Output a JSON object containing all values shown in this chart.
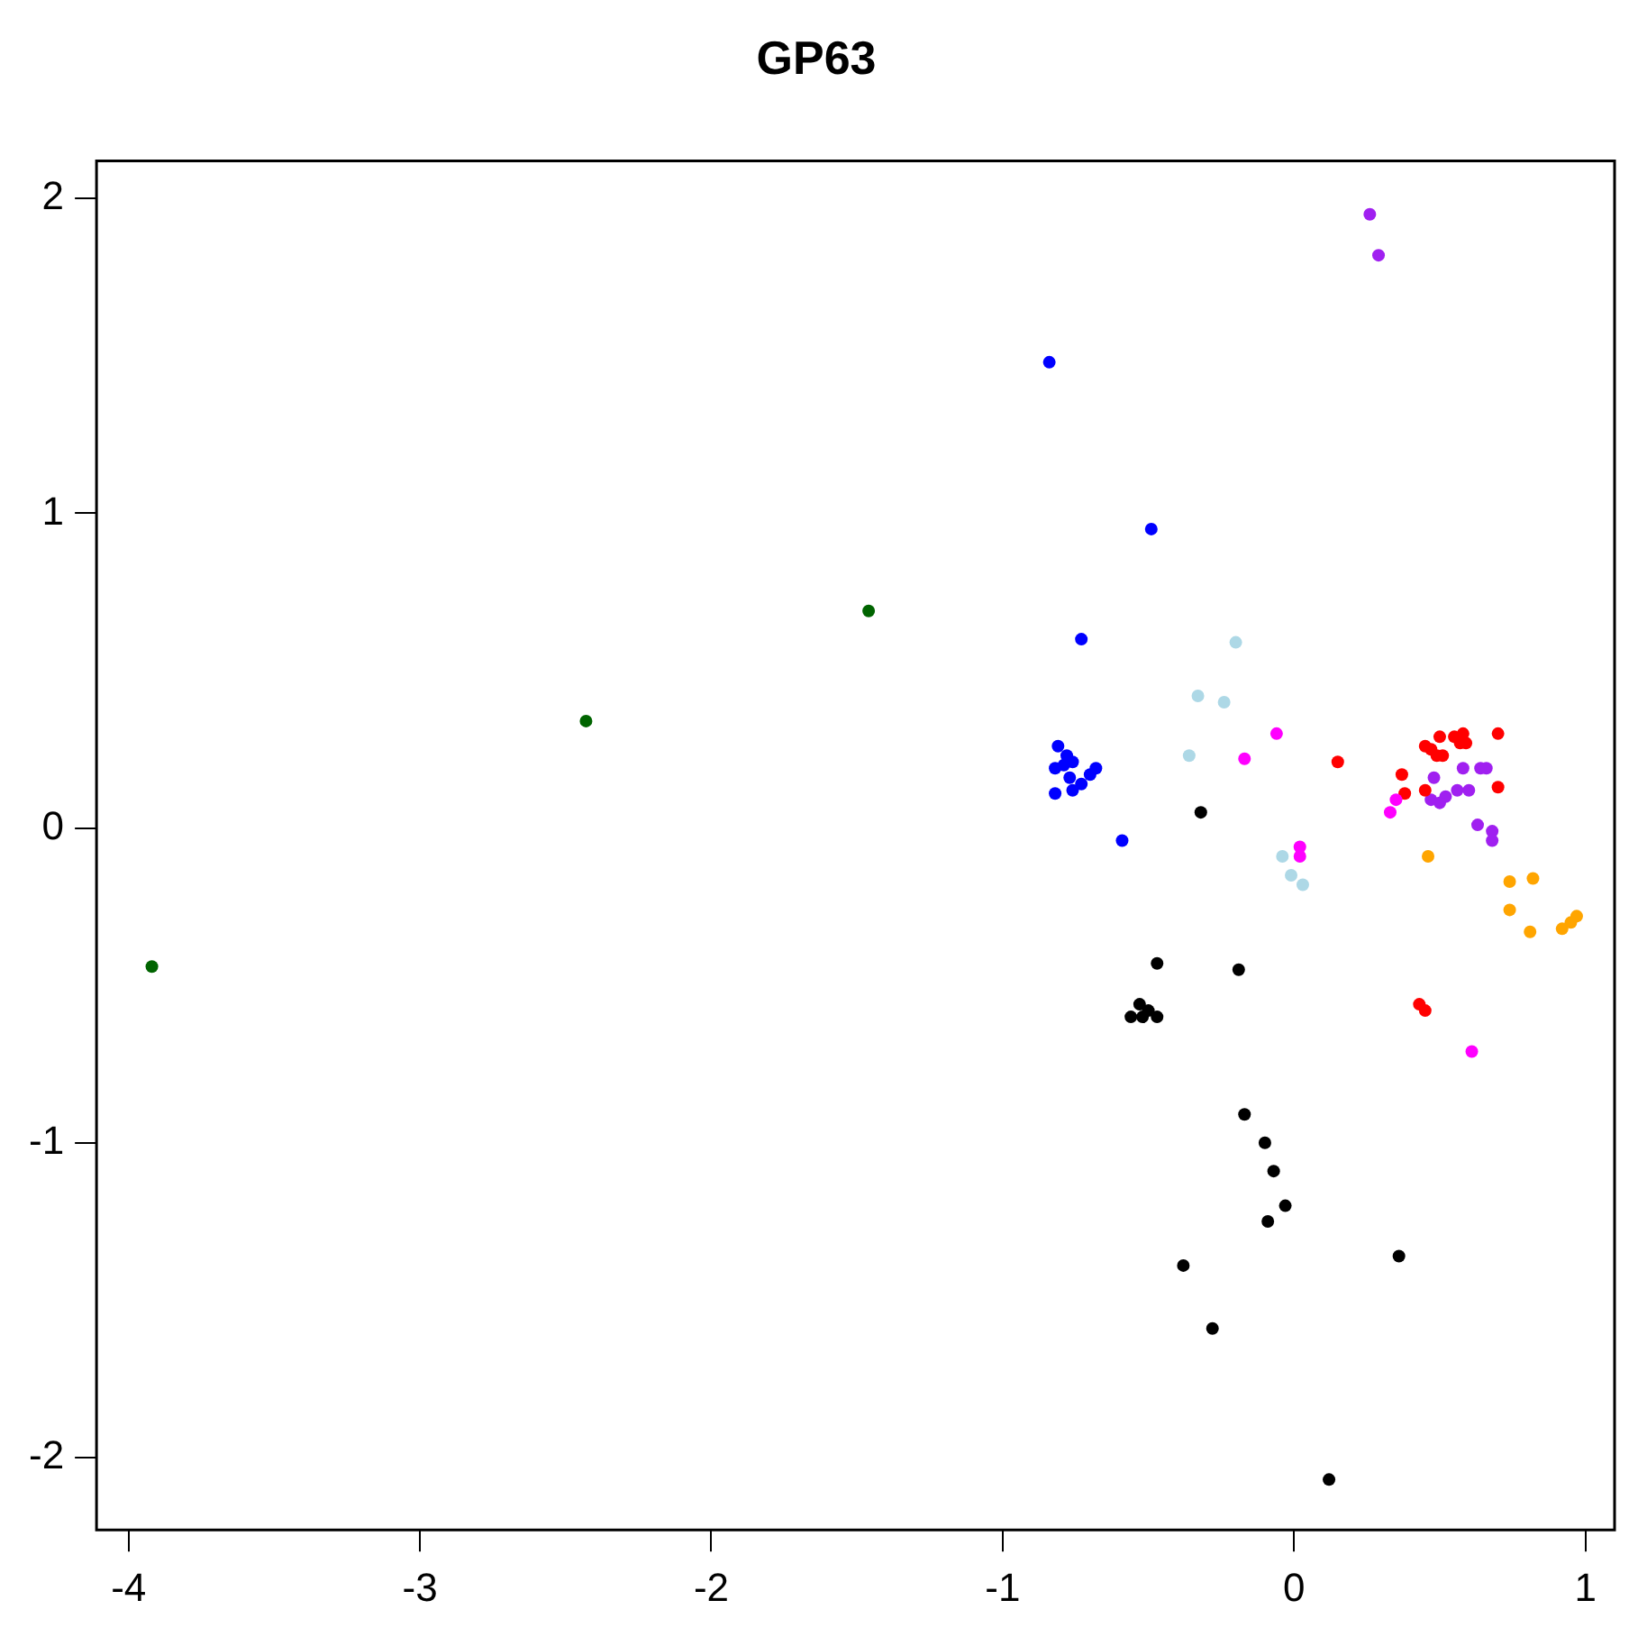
{
  "chart_data": {
    "type": "scatter",
    "title": "GP63",
    "marker": "circle",
    "grid": false,
    "legend": false,
    "xlim": [
      -4.11,
      1.1
    ],
    "ylim": [
      -2.23,
      2.12
    ],
    "xticks": [
      -4,
      -3,
      -2,
      -1,
      0,
      1
    ],
    "yticks": [
      -2,
      -1,
      0,
      1,
      2
    ],
    "series": [
      {
        "color": "#006400",
        "x": [
          -3.92,
          -2.43,
          -1.46
        ],
        "values": [
          -0.44,
          0.34,
          0.69
        ]
      },
      {
        "color": "#0000ff",
        "x": [
          -0.84,
          -0.49,
          -0.73,
          -0.59,
          -0.68,
          -0.81,
          -0.78,
          -0.76,
          -0.82,
          -0.77,
          -0.73,
          -0.82,
          -0.76,
          -0.7,
          -0.79
        ],
        "values": [
          1.48,
          0.95,
          0.6,
          -0.04,
          0.19,
          0.26,
          0.23,
          0.21,
          0.19,
          0.16,
          0.14,
          0.11,
          0.12,
          0.17,
          0.2
        ]
      },
      {
        "color": "#add8e6",
        "x": [
          -0.2,
          -0.33,
          -0.24,
          -0.36,
          -0.04,
          -0.01,
          0.03
        ],
        "values": [
          0.59,
          0.42,
          0.4,
          0.23,
          -0.09,
          -0.15,
          -0.18
        ]
      },
      {
        "color": "#ff00ff",
        "x": [
          -0.06,
          -0.17,
          0.02,
          0.02,
          0.33,
          0.35,
          0.61
        ],
        "values": [
          0.3,
          0.22,
          -0.06,
          -0.09,
          0.05,
          0.09,
          -0.71
        ]
      },
      {
        "color": "#000000",
        "x": [
          -0.32,
          -0.47,
          -0.19,
          -0.56,
          -0.53,
          -0.5,
          -0.47,
          -0.52,
          -0.17,
          -0.1,
          -0.07,
          -0.09,
          -0.03,
          -0.38,
          -0.28,
          0.36,
          0.12
        ],
        "values": [
          0.05,
          -0.43,
          -0.45,
          -0.6,
          -0.56,
          -0.58,
          -0.6,
          -0.6,
          -0.91,
          -1.0,
          -1.09,
          -1.25,
          -1.2,
          -1.39,
          -1.59,
          -1.36,
          -2.07
        ]
      },
      {
        "color": "#ff0000",
        "x": [
          0.15,
          0.45,
          0.47,
          0.5,
          0.51,
          0.55,
          0.58,
          0.59,
          0.57,
          0.7,
          0.37,
          0.38,
          0.45,
          0.7,
          0.49,
          0.43,
          0.45
        ],
        "values": [
          0.21,
          0.26,
          0.25,
          0.29,
          0.23,
          0.29,
          0.3,
          0.27,
          0.27,
          0.3,
          0.17,
          0.11,
          0.12,
          0.13,
          0.23,
          -0.56,
          -0.58
        ]
      },
      {
        "color": "#a020f0",
        "x": [
          0.26,
          0.29,
          0.48,
          0.58,
          0.64,
          0.66,
          0.47,
          0.52,
          0.56,
          0.6,
          0.5,
          0.63,
          0.68,
          0.68
        ],
        "values": [
          1.95,
          1.82,
          0.16,
          0.19,
          0.19,
          0.19,
          0.09,
          0.1,
          0.12,
          0.12,
          0.08,
          0.01,
          -0.01,
          -0.04
        ]
      },
      {
        "color": "#ffa500",
        "x": [
          0.46,
          0.74,
          0.82,
          0.74,
          0.81,
          0.92,
          0.95,
          0.97
        ],
        "values": [
          -0.09,
          -0.17,
          -0.16,
          -0.26,
          -0.33,
          -0.32,
          -0.3,
          -0.28
        ]
      }
    ]
  }
}
